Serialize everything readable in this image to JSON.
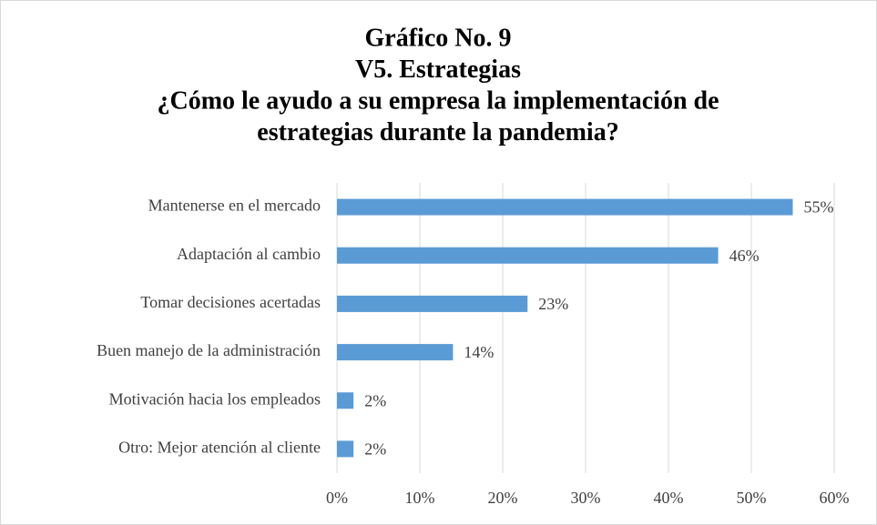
{
  "chart_data": {
    "type": "bar",
    "orientation": "horizontal",
    "title": [
      "Gráfico No. 9",
      "V5. Estrategias",
      "¿Cómo le ayudo a su empresa la implementación de",
      "estrategias durante la pandemia?"
    ],
    "categories": [
      "Mantenerse en el mercado",
      "Adaptación al cambio",
      "Tomar decisiones acertadas",
      "Buen manejo de la administración",
      "Motivación hacia los empleados",
      "Otro: Mejor atención al cliente"
    ],
    "values": [
      55,
      46,
      23,
      14,
      2,
      2
    ],
    "value_labels": [
      "55%",
      "46%",
      "23%",
      "14%",
      "2%",
      "2%"
    ],
    "color": "#5b9bd5",
    "xlim": [
      0,
      60
    ],
    "xticks": [
      {
        "value": 0,
        "label": "0%"
      },
      {
        "value": 10,
        "label": "10%"
      },
      {
        "value": 20,
        "label": "20%"
      },
      {
        "value": 30,
        "label": "30%"
      },
      {
        "value": 40,
        "label": "40%"
      },
      {
        "value": 50,
        "label": "50%"
      },
      {
        "value": 60,
        "label": "60%"
      }
    ],
    "grid": true
  }
}
